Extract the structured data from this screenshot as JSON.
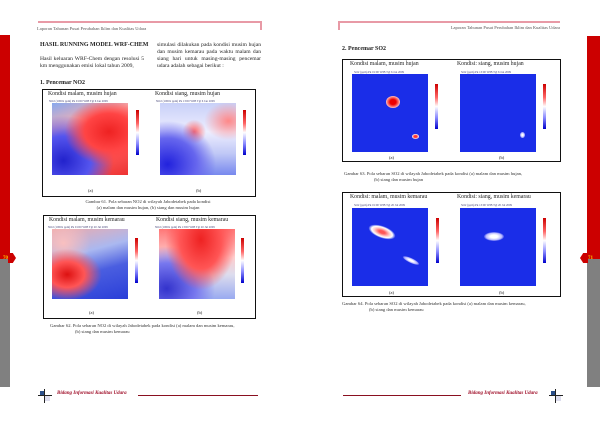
{
  "header": {
    "text": "Laporan Tahunan Pusat Perubahan Iklim dan Kualitas Udara"
  },
  "left_page": {
    "page_number": "70",
    "section_title": "HASIL RUNNING MODEL WRF-CHEM",
    "para1": "Hasil keluaran WRF-Chem dengan resolusi 5 km menggunakan emisi lokal tahun 2009,",
    "para2": "simulasi dilakukan pada kondisi musim hujan dan musim kemarau pada waktu malam dan siang hari untuk masing-masing pencemar udara adalah sebagai berikut :",
    "subsection": "1. Pencemar NO2",
    "fig61": {
      "panel_a_title": "Kondisi malam, musim hujan",
      "panel_b_title": "Kondisi siang, musim hujan",
      "panel_a_sub": "NO2 (1000x ppm) Pk 01:00 WIB Tgl 6 Jan 2009",
      "panel_b_sub": "NO2 (1000x ppm) Pk 13:00 WIB Tgl 6 Jan 2009",
      "label_a": "(a)",
      "label_b": "(b)",
      "caption1": "Gambar 61. Pola sebaran NO2 di wilayah Jabodetabek pada kondisi",
      "caption2": "(a) malam dan musim hujan, (b) siang dan musim hujan"
    },
    "fig62": {
      "panel_a_title": "Kondisi malam, musim kemarau",
      "panel_b_title": "Kondisi siang, musim kemarau",
      "panel_a_sub": "NO2 (1000x ppm) Pk 01:00 WIB Tgl 20 Jul 2009",
      "panel_b_sub": "NO2 (1000x ppm) Pk 13:00 WIB Tgl 20 Jul 2009",
      "label_a": "(a)",
      "label_b": "(b)",
      "caption1": "Gambar 62. Pola sebaran NO2 di wilayah Jabodetabek pada kondisi (a) malam dan musim kemarau,",
      "caption2": "(b) siang dan musim kemarau"
    }
  },
  "right_page": {
    "page_number": "71",
    "subsection": "2. Pencemar SO2",
    "fig63": {
      "panel_a_title": "Kondisi malam, musim hujan",
      "panel_b_title": "Kondisi: siang, musim hujan",
      "panel_a_sub": "SO2 (ppm) Pk 01:00 WIB Tgl 6 Jan 2009",
      "panel_b_sub": "SO2 (ppm) Pk 13:00 WIB Tgl 6 Jan 2009",
      "label_a": "(a)",
      "label_b": "(b)",
      "caption1": "Gambar 63. Pola sebaran SO2 di wilayah Jabodetabek pada kondisi (a) malam dan musim hujan,",
      "caption2": "(b) siang dan musim hujan"
    },
    "fig64": {
      "panel_a_title": "Kondisi: malam, musim kemarau",
      "panel_b_title": "Kondisi: siang, musim kemarau",
      "panel_a_sub": "SO2 (ppm) Pk 01:00 WIB Tgl 20 Jul 2009",
      "panel_b_sub": "SO2 (ppm) Pk 13:00 WIB Tgl 20 Jul 2009",
      "label_a": "(a)",
      "label_b": "(b)",
      "caption1": "Gambar 64. Pola sebaran SO2 di wilayah Jabodetabek pada kondisi (a) malam dan musim kemarau,",
      "caption2": "(b) siang dan musim kemarau"
    }
  },
  "footer": {
    "text": "Bidang Informasi Kualitas Udara"
  }
}
